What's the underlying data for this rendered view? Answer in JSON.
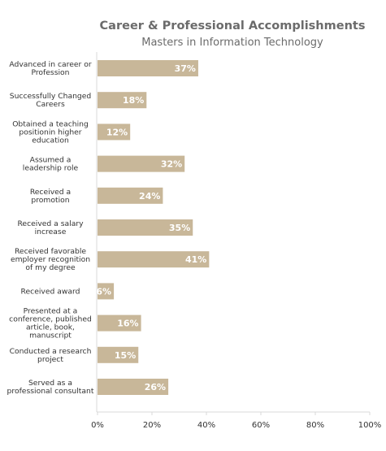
{
  "chart_data": {
    "type": "bar",
    "orientation": "horizontal",
    "title": "Career & Professional Accomplishments",
    "subtitle": "Masters in Information Technology",
    "categories": [
      [
        "Advanced in career or",
        "Profession"
      ],
      [
        "Successfully Changed",
        "Careers"
      ],
      [
        "Obtained a  teaching",
        "positionin higher",
        "education"
      ],
      [
        "Assumed a",
        "leadership role"
      ],
      [
        "Received a",
        "promotion"
      ],
      [
        "Received a salary",
        "increase"
      ],
      [
        "Received favorable",
        "employer recognition",
        "of my degree"
      ],
      [
        "Received award"
      ],
      [
        "Presented at a",
        "conference, published",
        "article, book,",
        "manuscript"
      ],
      [
        "Conducted a research",
        "project"
      ],
      [
        "Served as a",
        "professional consultant"
      ]
    ],
    "values": [
      37,
      18,
      12,
      32,
      24,
      35,
      41,
      6,
      16,
      15,
      26
    ],
    "value_labels": [
      "37%",
      "18%",
      "12%",
      "32%",
      "24%",
      "35%",
      "41%",
      "6%",
      "16%",
      "15%",
      "26%"
    ],
    "xlim": [
      0,
      100
    ],
    "x_ticks": [
      "0%",
      "20%",
      "40%",
      "60%",
      "80%",
      "100%"
    ],
    "grid": false,
    "legend": "none",
    "bar_color": "#c8b799",
    "label_color": "#ffffff",
    "axis_color": "#d9d9d9"
  }
}
